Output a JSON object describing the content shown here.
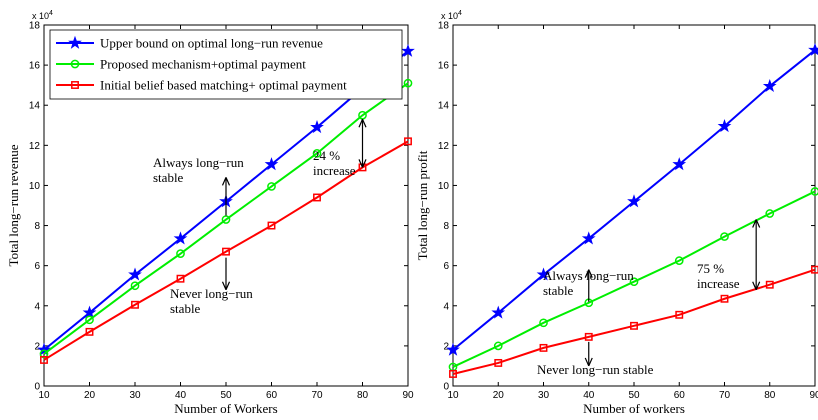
{
  "chart_data": [
    {
      "type": "line",
      "title": "",
      "xlabel": "Number of Workers",
      "ylabel": "Total long−run revenue",
      "y_multiplier": "x 10",
      "y_exponent": "4",
      "xlim": [
        10,
        90
      ],
      "ylim": [
        0,
        18
      ],
      "x_ticks": [
        10,
        20,
        30,
        40,
        50,
        60,
        70,
        80,
        90
      ],
      "y_ticks": [
        0,
        2,
        4,
        6,
        8,
        10,
        12,
        14,
        16,
        18
      ],
      "grid": false,
      "legend_position": "top-left",
      "x": [
        10,
        20,
        30,
        40,
        50,
        60,
        70,
        80,
        90
      ],
      "series": [
        {
          "name": "Upper bound on optimal long−run revenue",
          "color": "#0000ff",
          "marker": "star",
          "values": [
            1.8,
            3.65,
            5.55,
            7.35,
            9.2,
            11.05,
            12.9,
            14.85,
            16.7
          ]
        },
        {
          "name": "Proposed mechanism+optimal payment",
          "color": "#00ee00",
          "marker": "circle",
          "values": [
            1.6,
            3.3,
            5.0,
            6.6,
            8.3,
            9.95,
            11.6,
            13.5,
            15.1
          ]
        },
        {
          "name": "Initial belief based matching+ optimal payment",
          "color": "#ff0000",
          "marker": "square",
          "values": [
            1.3,
            2.7,
            4.05,
            5.35,
            6.7,
            8.0,
            9.4,
            10.9,
            12.2
          ]
        }
      ],
      "annotations": [
        {
          "lines": [
            "Always long−run",
            "stable"
          ],
          "arrow": "up",
          "at_x": 50,
          "arrow_y": [
            8.5,
            10.4
          ]
        },
        {
          "lines": [
            "Never long−run",
            "stable"
          ],
          "arrow": "down",
          "at_x": 50,
          "arrow_y": [
            6.4,
            4.8
          ]
        },
        {
          "lines": [
            "24 %",
            "increase"
          ],
          "arrow": "double",
          "at_x": 80,
          "arrow_y": [
            10.9,
            13.3
          ]
        }
      ]
    },
    {
      "type": "line",
      "title": "",
      "xlabel": "Number of workers",
      "ylabel": "Total long−run profit",
      "y_multiplier": "x 10",
      "y_exponent": "4",
      "xlim": [
        10,
        90
      ],
      "ylim": [
        0,
        18
      ],
      "x_ticks": [
        10,
        20,
        30,
        40,
        50,
        60,
        70,
        80,
        90
      ],
      "y_ticks": [
        0,
        2,
        4,
        6,
        8,
        10,
        12,
        14,
        16,
        18
      ],
      "grid": false,
      "x": [
        10,
        20,
        30,
        40,
        50,
        60,
        70,
        80,
        90
      ],
      "series": [
        {
          "color": "#0000ff",
          "marker": "star",
          "values": [
            1.8,
            3.65,
            5.55,
            7.35,
            9.2,
            11.05,
            12.95,
            14.95,
            16.75
          ]
        },
        {
          "color": "#00ee00",
          "marker": "circle",
          "values": [
            0.95,
            2.0,
            3.15,
            4.15,
            5.2,
            6.25,
            7.45,
            8.6,
            9.7
          ]
        },
        {
          "color": "#ff0000",
          "marker": "square",
          "values": [
            0.6,
            1.15,
            1.9,
            2.45,
            3.0,
            3.55,
            4.35,
            5.05,
            5.8
          ]
        }
      ],
      "annotations": [
        {
          "lines": [
            "Always long−run",
            "stable"
          ],
          "arrow": "up",
          "at_x": 40,
          "arrow_y": [
            4.2,
            5.8
          ]
        },
        {
          "lines": [
            "Never long−run stable"
          ],
          "arrow": "down",
          "at_x": 40,
          "arrow_y": [
            2.2,
            1.0
          ]
        },
        {
          "lines": [
            "75 %",
            "increase"
          ],
          "arrow": "double",
          "at_x": 77,
          "arrow_y": [
            4.8,
            8.3
          ]
        }
      ]
    }
  ]
}
